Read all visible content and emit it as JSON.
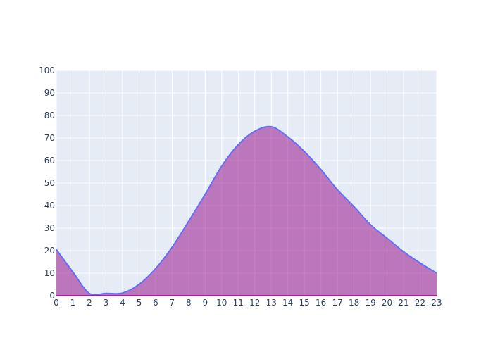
{
  "chart_data": {
    "type": "area",
    "title": "",
    "xlabel": "",
    "ylabel": "",
    "x": [
      0,
      1,
      2,
      3,
      4,
      5,
      6,
      7,
      8,
      9,
      10,
      11,
      12,
      13,
      14,
      15,
      16,
      17,
      18,
      19,
      20,
      21,
      22,
      23
    ],
    "series": [
      {
        "values": [
          20.5,
          10.5,
          1,
          1,
          1.2,
          5,
          12,
          21.5,
          33,
          45,
          57.5,
          67,
          73,
          75,
          70.5,
          64,
          56,
          47,
          39.5,
          31.5,
          25.5,
          19.5,
          14.5,
          10
        ]
      }
    ],
    "xlim": [
      0,
      23
    ],
    "ylim": [
      0,
      100
    ],
    "x_ticks": [
      "0",
      "1",
      "2",
      "3",
      "4",
      "5",
      "6",
      "7",
      "8",
      "9",
      "10",
      "11",
      "12",
      "13",
      "14",
      "15",
      "16",
      "17",
      "18",
      "19",
      "20",
      "21",
      "22",
      "23"
    ],
    "y_ticks": [
      "0",
      "10",
      "20",
      "30",
      "40",
      "50",
      "60",
      "70",
      "80",
      "90",
      "100"
    ],
    "grid": true,
    "legend": "none",
    "colors": {
      "plot_background": "#e5ecf6",
      "grid": "#ffffff",
      "line": "#636efa",
      "fill": "rgba(148, 0, 128, 0.5)",
      "axis_line": "#990099",
      "tick_text": "#2a3f5f"
    }
  }
}
